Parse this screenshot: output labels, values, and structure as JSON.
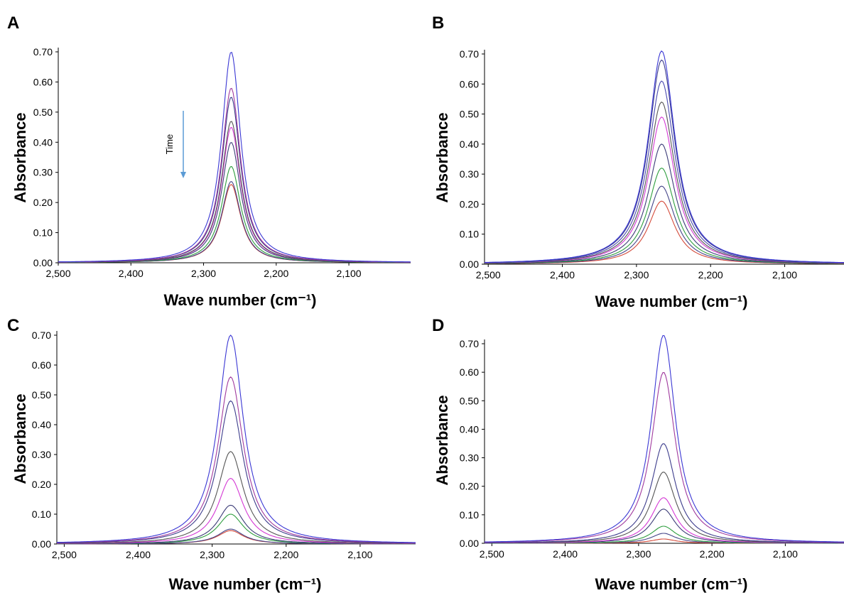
{
  "chart_data": [
    {
      "type": "line",
      "panel_label": "A",
      "xlabel": "Wave number (cm⁻¹)",
      "ylabel": "Absorbance",
      "x_axis_reversed": true,
      "xlim": [
        2500,
        2015
      ],
      "ylim": [
        0,
        0.7
      ],
      "xticks": [
        2500,
        2400,
        2300,
        2200,
        2100
      ],
      "xtick_labels": [
        "2,500",
        "2,400",
        "2,300",
        "2,200",
        "2,100"
      ],
      "yticks": [
        0,
        0.1,
        0.2,
        0.3,
        0.4,
        0.5,
        0.6,
        0.7
      ],
      "ytick_labels": [
        "0.00",
        "0.10",
        "0.20",
        "0.30",
        "0.40",
        "0.50",
        "0.60",
        "0.70"
      ],
      "peak_center": 2262,
      "curve_width": 16,
      "annotation": {
        "text": "Time",
        "direction": "down"
      },
      "series": [
        {
          "peak": 0.7,
          "color": "#3a37d4"
        },
        {
          "peak": 0.58,
          "color": "#a03a9e"
        },
        {
          "peak": 0.55,
          "color": "#3c3c8c"
        },
        {
          "peak": 0.47,
          "color": "#555555"
        },
        {
          "peak": 0.45,
          "color": "#d438d4"
        },
        {
          "peak": 0.4,
          "color": "#3c3c78"
        },
        {
          "peak": 0.32,
          "color": "#2e9e3e"
        },
        {
          "peak": 0.27,
          "color": "#444488"
        },
        {
          "peak": 0.26,
          "color": "#d44a3a"
        }
      ]
    },
    {
      "type": "line",
      "panel_label": "B",
      "xlabel": "Wave number (cm⁻¹)",
      "ylabel": "Absorbance",
      "x_axis_reversed": true,
      "xlim": [
        2505,
        2020
      ],
      "ylim": [
        0,
        0.7
      ],
      "xticks": [
        2500,
        2400,
        2300,
        2200,
        2100
      ],
      "xtick_labels": [
        "2,500",
        "2,400",
        "2,300",
        "2,200",
        "2,100"
      ],
      "yticks": [
        0,
        0.1,
        0.2,
        0.3,
        0.4,
        0.5,
        0.6,
        0.7
      ],
      "ytick_labels": [
        "0.00",
        "0.10",
        "0.20",
        "0.30",
        "0.40",
        "0.50",
        "0.60",
        "0.70"
      ],
      "peak_center": 2266,
      "curve_width": 22,
      "series": [
        {
          "peak": 0.71,
          "color": "#3a37d4"
        },
        {
          "peak": 0.68,
          "color": "#3c3c8c"
        },
        {
          "peak": 0.61,
          "color": "#4a4ab0"
        },
        {
          "peak": 0.54,
          "color": "#555555"
        },
        {
          "peak": 0.49,
          "color": "#d438d4"
        },
        {
          "peak": 0.4,
          "color": "#3c3c78"
        },
        {
          "peak": 0.32,
          "color": "#2e9e3e"
        },
        {
          "peak": 0.26,
          "color": "#444488"
        },
        {
          "peak": 0.21,
          "color": "#d44a3a"
        }
      ]
    },
    {
      "type": "line",
      "panel_label": "C",
      "xlabel": "Wave number (cm⁻¹)",
      "ylabel": "Absorbance",
      "x_axis_reversed": true,
      "xlim": [
        2510,
        2025
      ],
      "ylim": [
        0,
        0.7
      ],
      "xticks": [
        2500,
        2400,
        2300,
        2200,
        2100
      ],
      "xtick_labels": [
        "2,500",
        "2,400",
        "2,300",
        "2,200",
        "2,100"
      ],
      "yticks": [
        0,
        0.1,
        0.2,
        0.3,
        0.4,
        0.5,
        0.6,
        0.7
      ],
      "ytick_labels": [
        "0.00",
        "0.10",
        "0.20",
        "0.30",
        "0.40",
        "0.50",
        "0.60",
        "0.70"
      ],
      "peak_center": 2275,
      "curve_width": 21,
      "series": [
        {
          "peak": 0.7,
          "color": "#3a37d4"
        },
        {
          "peak": 0.56,
          "color": "#a03a9e"
        },
        {
          "peak": 0.48,
          "color": "#3c3c8c"
        },
        {
          "peak": 0.31,
          "color": "#555555"
        },
        {
          "peak": 0.22,
          "color": "#d438d4"
        },
        {
          "peak": 0.13,
          "color": "#3c3c78"
        },
        {
          "peak": 0.1,
          "color": "#2e9e3e"
        },
        {
          "peak": 0.05,
          "color": "#444488"
        },
        {
          "peak": 0.045,
          "color": "#d44a3a"
        }
      ]
    },
    {
      "type": "line",
      "panel_label": "D",
      "xlabel": "Wave number (cm⁻¹)",
      "ylabel": "Absorbance",
      "x_axis_reversed": true,
      "xlim": [
        2510,
        2020
      ],
      "ylim": [
        0,
        0.7
      ],
      "xticks": [
        2500,
        2400,
        2300,
        2200,
        2100
      ],
      "xtick_labels": [
        "2,500",
        "2,400",
        "2,300",
        "2,200",
        "2,100"
      ],
      "yticks": [
        0,
        0.1,
        0.2,
        0.3,
        0.4,
        0.5,
        0.6,
        0.7
      ],
      "ytick_labels": [
        "0.00",
        "0.10",
        "0.20",
        "0.30",
        "0.40",
        "0.50",
        "0.60",
        "0.70"
      ],
      "peak_center": 2266,
      "curve_width": 20,
      "series": [
        {
          "peak": 0.73,
          "color": "#3a37d4"
        },
        {
          "peak": 0.6,
          "color": "#a03a9e"
        },
        {
          "peak": 0.35,
          "color": "#3c3c8c"
        },
        {
          "peak": 0.25,
          "color": "#555555"
        },
        {
          "peak": 0.16,
          "color": "#d438d4"
        },
        {
          "peak": 0.12,
          "color": "#3c3c78"
        },
        {
          "peak": 0.06,
          "color": "#2e9e3e"
        },
        {
          "peak": 0.035,
          "color": "#444488"
        },
        {
          "peak": 0.015,
          "color": "#d44a3a"
        }
      ]
    }
  ]
}
